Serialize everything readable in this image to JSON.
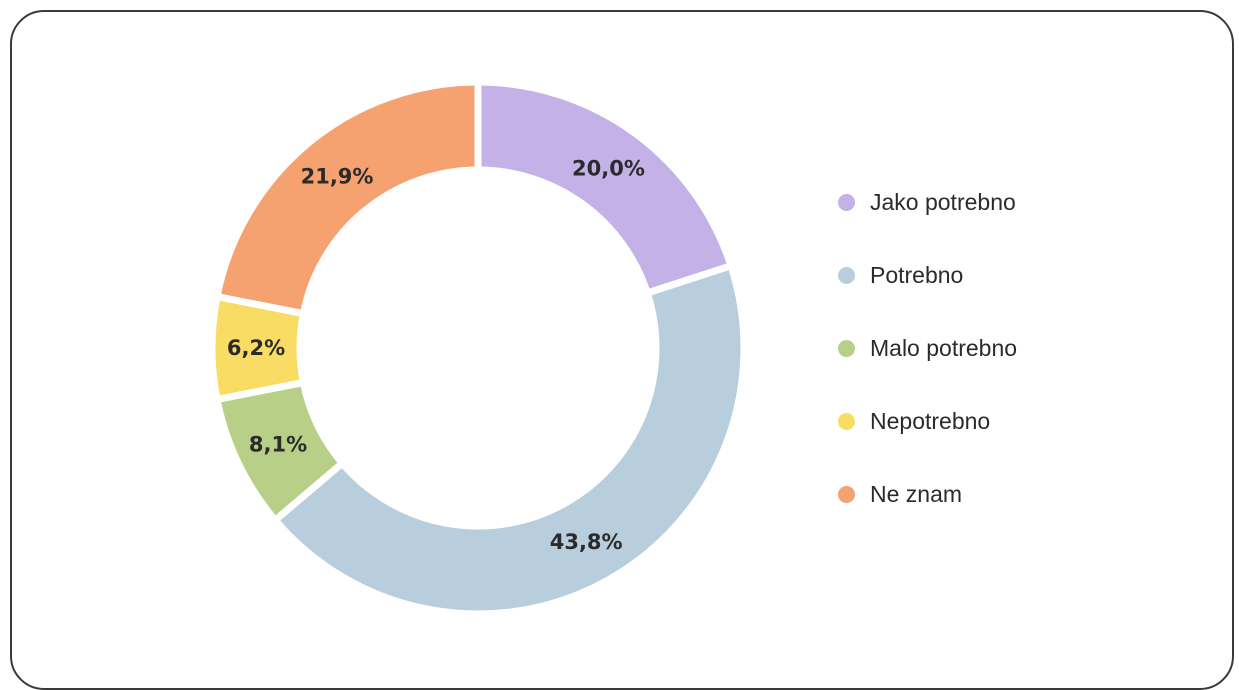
{
  "chart_data": {
    "type": "pie",
    "variant": "donut",
    "title": "",
    "categories": [
      "Jako potrebno",
      "Potrebno",
      "Malo potrebno",
      "Nepotrebno",
      "Ne znam"
    ],
    "values": [
      20.0,
      43.8,
      8.1,
      6.2,
      21.9
    ],
    "value_labels": [
      "20,0%",
      "43,8%",
      "8,1%",
      "6,2%",
      "21,9%"
    ],
    "colors": [
      "#c3b1e8",
      "#b8cedd",
      "#b7cf86",
      "#f9dc63",
      "#f5a170"
    ],
    "start": "12 o'clock",
    "direction": "clockwise",
    "legend_position": "right"
  },
  "legend": {
    "items": [
      {
        "label": "Jako potrebno",
        "color": "#c3b1e8"
      },
      {
        "label": "Potrebno",
        "color": "#b8cedd"
      },
      {
        "label": "Malo potrebno",
        "color": "#b7cf86"
      },
      {
        "label": "Nepotrebno",
        "color": "#f9dc63"
      },
      {
        "label": "Ne znam",
        "color": "#f5a170"
      }
    ]
  }
}
